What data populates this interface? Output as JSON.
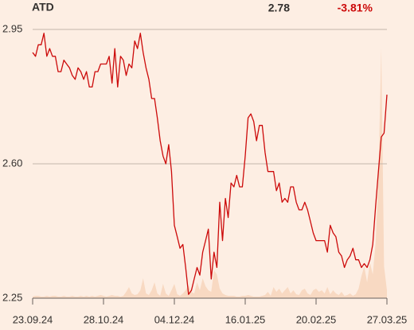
{
  "chart_data": {
    "type": "line",
    "title": "ATD",
    "last": "2.78",
    "change": "-3.81%",
    "categories": [
      "23.09.24",
      null,
      null,
      null,
      null,
      null,
      null,
      null,
      null,
      null,
      null,
      null,
      null,
      null,
      null,
      null,
      null,
      null,
      null,
      null,
      null,
      null,
      null,
      null,
      null,
      "28.10.24",
      null,
      null,
      null,
      null,
      null,
      null,
      null,
      null,
      null,
      null,
      null,
      null,
      null,
      null,
      null,
      null,
      null,
      null,
      null,
      null,
      null,
      null,
      null,
      null,
      "04.12.24",
      null,
      null,
      null,
      null,
      null,
      null,
      null,
      null,
      null,
      null,
      null,
      null,
      null,
      null,
      null,
      null,
      null,
      null,
      null,
      null,
      null,
      null,
      null,
      null,
      "16.01.25",
      null,
      null,
      null,
      null,
      null,
      null,
      null,
      null,
      null,
      null,
      null,
      null,
      null,
      null,
      null,
      null,
      null,
      null,
      null,
      null,
      null,
      null,
      null,
      null,
      "20.02.25",
      null,
      null,
      null,
      null,
      null,
      null,
      null,
      null,
      null,
      null,
      null,
      null,
      null,
      null,
      null,
      null,
      null,
      null,
      null,
      null,
      null,
      null,
      null,
      null,
      "27.03.25"
    ],
    "series": [
      {
        "color": "#cc0a0a",
        "values": [
          2.89,
          2.88,
          2.91,
          2.91,
          2.94,
          2.88,
          2.9,
          2.88,
          2.88,
          2.84,
          2.84,
          2.87,
          2.86,
          2.85,
          2.83,
          2.82,
          2.85,
          2.84,
          2.82,
          2.84,
          2.8,
          2.8,
          2.84,
          2.84,
          2.86,
          2.86,
          2.86,
          2.88,
          2.81,
          2.9,
          2.8,
          2.88,
          2.87,
          2.83,
          2.86,
          2.85,
          2.92,
          2.9,
          2.94,
          2.89,
          2.85,
          2.82,
          2.77,
          2.77,
          2.72,
          2.66,
          2.62,
          2.6,
          2.65,
          2.58,
          2.44,
          2.41,
          2.38,
          2.39,
          2.33,
          2.26,
          2.27,
          2.3,
          2.33,
          2.31,
          2.37,
          2.4,
          2.43,
          2.3,
          2.37,
          2.33,
          2.5,
          2.4,
          2.51,
          2.46,
          2.55,
          2.54,
          2.57,
          2.54,
          2.54,
          2.62,
          2.72,
          2.73,
          2.71,
          2.66,
          2.7,
          2.7,
          2.63,
          2.58,
          2.58,
          2.58,
          2.53,
          2.55,
          2.5,
          2.51,
          2.5,
          2.54,
          2.54,
          2.5,
          2.48,
          2.48,
          2.5,
          2.48,
          2.45,
          2.42,
          2.4,
          2.4,
          2.4,
          2.4,
          2.37,
          2.44,
          2.42,
          2.41,
          2.37,
          2.36,
          2.33,
          2.35,
          2.36,
          2.38,
          2.35,
          2.35,
          2.33,
          2.34,
          2.33,
          2.35,
          2.39,
          2.49,
          2.58,
          2.67,
          2.68,
          2.78
        ]
      },
      {
        "type": "area",
        "color": "#f8d9c2",
        "values": [
          2,
          3,
          3,
          2,
          2,
          3,
          2,
          3,
          3,
          2,
          2,
          3,
          2,
          2,
          3,
          2,
          2,
          3,
          2,
          3,
          2,
          3,
          2,
          3,
          4,
          3,
          2,
          3,
          4,
          3,
          3,
          2,
          3,
          8,
          14,
          6,
          4,
          5,
          10,
          25,
          6,
          4,
          10,
          20,
          6,
          3,
          18,
          6,
          3,
          10,
          18,
          5,
          3,
          6,
          10,
          16,
          8,
          6,
          20,
          10,
          25,
          15,
          10,
          8,
          35,
          30,
          12,
          6,
          4,
          3,
          3,
          3,
          2,
          2,
          3,
          3,
          4,
          3,
          2,
          2,
          2,
          3,
          4,
          8,
          3,
          14,
          8,
          12,
          6,
          10,
          14,
          6,
          10,
          5,
          4,
          10,
          12,
          6,
          4,
          10,
          12,
          8,
          10,
          6,
          14,
          5,
          10,
          6,
          4,
          8,
          3,
          4,
          6,
          3,
          5,
          12,
          28,
          40,
          20,
          45,
          30,
          70,
          150,
          315,
          40,
          10
        ]
      }
    ],
    "ylim": [
      2.25,
      2.95
    ],
    "yticks": [
      2.25,
      {
        "value": 2.6,
        "label": "2.60"
      },
      2.95
    ],
    "grid": true
  }
}
